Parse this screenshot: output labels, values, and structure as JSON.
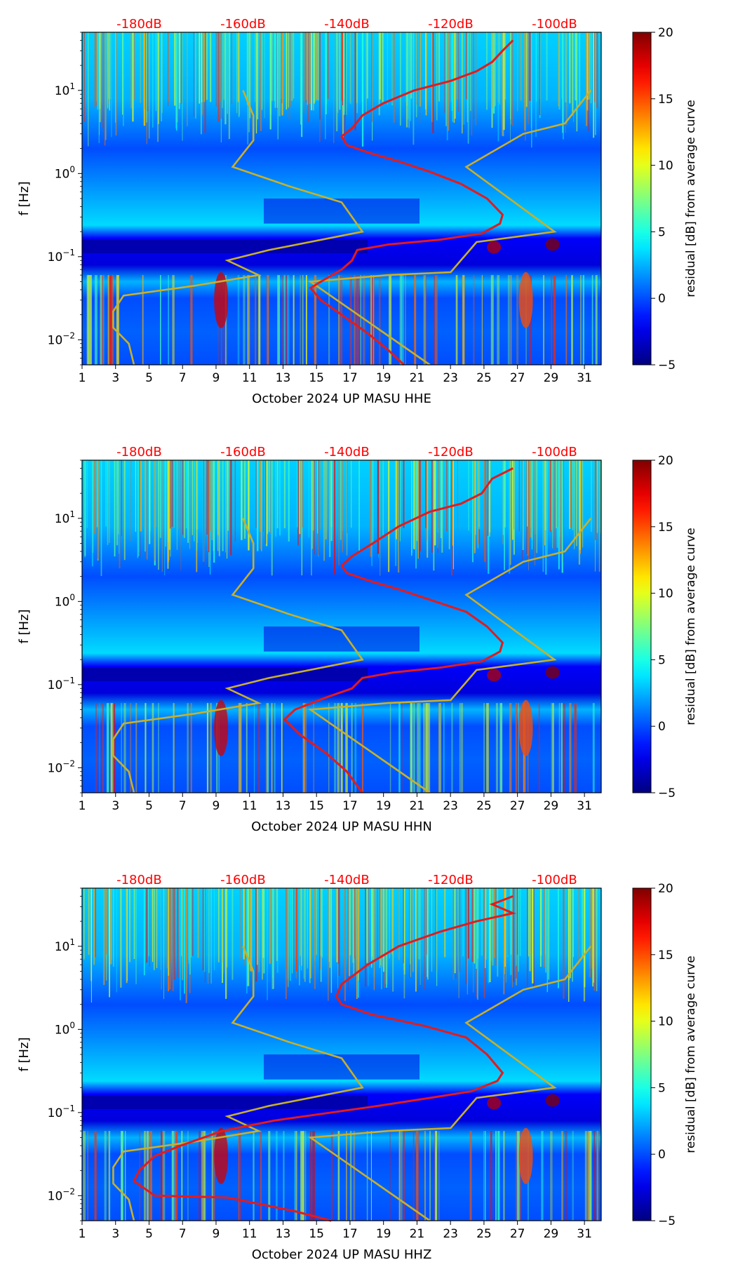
{
  "chart_data": [
    {
      "type": "heatmap",
      "channel": "HHE",
      "xlabel": "October 2024 UP MASU  HHE",
      "ylabel": "f [Hz]",
      "colorbar_label": "residual [dB] from average curve",
      "x_ticks": [
        "1",
        "3",
        "5",
        "7",
        "9",
        "11",
        "13",
        "15",
        "17",
        "19",
        "21",
        "23",
        "25",
        "27",
        "29",
        "31"
      ],
      "xlim": [
        1,
        32
      ],
      "ylim_hz": [
        0.005,
        50
      ],
      "y_ticks": [
        {
          "exp": "1",
          "value": 10
        },
        {
          "exp": "0",
          "value": 1
        },
        {
          "exp": "−1",
          "value": 0.1
        },
        {
          "exp": "−2",
          "value": 0.01
        }
      ],
      "colorbar_ticks": [
        "20",
        "15",
        "10",
        "5",
        "0",
        "−5"
      ],
      "colorbar_range": [
        -5,
        20
      ],
      "db_axis": {
        "labels": [
          "-180dB",
          "-160dB",
          "-140dB",
          "-120dB",
          "-100dB"
        ],
        "values": [
          -180,
          -160,
          -140,
          -120,
          -100
        ],
        "range": [
          -191,
          -91
        ]
      },
      "red_curve": {
        "name": "mean PSD",
        "points_db_hz": [
          [
            -108,
            40
          ],
          [
            -110,
            30
          ],
          [
            -112,
            22
          ],
          [
            -115,
            17
          ],
          [
            -120,
            13
          ],
          [
            -127,
            10
          ],
          [
            -133,
            7
          ],
          [
            -137,
            5
          ],
          [
            -139,
            3.5
          ],
          [
            -141,
            2.8
          ],
          [
            -140,
            2.2
          ],
          [
            -136,
            1.8
          ],
          [
            -130,
            1.4
          ],
          [
            -124,
            1.05
          ],
          [
            -118,
            0.75
          ],
          [
            -113,
            0.5
          ],
          [
            -110,
            0.32
          ],
          [
            -110.5,
            0.25
          ],
          [
            -114,
            0.19
          ],
          [
            -122,
            0.16
          ],
          [
            -132,
            0.14
          ],
          [
            -138,
            0.12
          ],
          [
            -139,
            0.09
          ],
          [
            -141,
            0.07
          ],
          [
            -145,
            0.05
          ],
          [
            -147,
            0.042
          ],
          [
            -145,
            0.03
          ],
          [
            -141,
            0.02
          ],
          [
            -136,
            0.012
          ],
          [
            -132,
            0.0075
          ],
          [
            -129,
            0.005
          ]
        ]
      },
      "yellow_curves": [
        {
          "name": "NLNM",
          "points_db_hz": [
            [
              -160,
              10
            ],
            [
              -158,
              5
            ],
            [
              -158,
              2.5
            ],
            [
              -162,
              1.2
            ],
            [
              -151,
              0.7
            ],
            [
              -141,
              0.45
            ],
            [
              -137,
              0.2
            ],
            [
              -155,
              0.12
            ],
            [
              -163,
              0.09
            ],
            [
              -157,
              0.06
            ],
            [
              -169,
              0.045
            ],
            [
              -183,
              0.034
            ],
            [
              -185,
              0.022
            ],
            [
              -185,
              0.014
            ],
            [
              -182,
              0.009
            ],
            [
              -181,
              0.005
            ]
          ]
        },
        {
          "name": "NHNM",
          "points_db_hz": [
            [
              -93,
              10
            ],
            [
              -98,
              4
            ],
            [
              -106,
              3
            ],
            [
              -117,
              1.2
            ],
            [
              -100,
              0.2
            ],
            [
              -115,
              0.15
            ],
            [
              -120,
              0.065
            ],
            [
              -132,
              0.06
            ],
            [
              -147,
              0.05
            ],
            [
              -124,
              0.005
            ]
          ]
        }
      ]
    },
    {
      "type": "heatmap",
      "channel": "HHN",
      "xlabel": "October 2024 UP MASU  HHN",
      "ylabel": "f [Hz]",
      "colorbar_label": "residual [dB] from average curve",
      "x_ticks": [
        "1",
        "3",
        "5",
        "7",
        "9",
        "11",
        "13",
        "15",
        "17",
        "19",
        "21",
        "23",
        "25",
        "27",
        "29",
        "31"
      ],
      "xlim": [
        1,
        32
      ],
      "ylim_hz": [
        0.005,
        50
      ],
      "y_ticks": [
        {
          "exp": "1",
          "value": 10
        },
        {
          "exp": "0",
          "value": 1
        },
        {
          "exp": "−1",
          "value": 0.1
        },
        {
          "exp": "−2",
          "value": 0.01
        }
      ],
      "colorbar_ticks": [
        "20",
        "15",
        "10",
        "5",
        "0",
        "−5"
      ],
      "colorbar_range": [
        -5,
        20
      ],
      "db_axis": {
        "labels": [
          "-180dB",
          "-160dB",
          "-140dB",
          "-120dB",
          "-100dB"
        ],
        "values": [
          -180,
          -160,
          -140,
          -120,
          -100
        ],
        "range": [
          -191,
          -91
        ]
      },
      "red_curve": {
        "name": "mean PSD",
        "points_db_hz": [
          [
            -108,
            40
          ],
          [
            -112,
            30
          ],
          [
            -114,
            20
          ],
          [
            -118,
            15
          ],
          [
            -124,
            12
          ],
          [
            -130,
            8
          ],
          [
            -135,
            5
          ],
          [
            -139,
            3.5
          ],
          [
            -141,
            2.7
          ],
          [
            -140,
            2.2
          ],
          [
            -136,
            1.8
          ],
          [
            -130,
            1.4
          ],
          [
            -124,
            1.05
          ],
          [
            -117,
            0.75
          ],
          [
            -113,
            0.5
          ],
          [
            -110,
            0.32
          ],
          [
            -110.5,
            0.25
          ],
          [
            -114,
            0.19
          ],
          [
            -122,
            0.16
          ],
          [
            -131,
            0.14
          ],
          [
            -137,
            0.12
          ],
          [
            -139,
            0.09
          ],
          [
            -144,
            0.07
          ],
          [
            -150,
            0.05
          ],
          [
            -152,
            0.038
          ],
          [
            -149,
            0.025
          ],
          [
            -144,
            0.015
          ],
          [
            -140,
            0.009
          ],
          [
            -137,
            0.005
          ]
        ]
      },
      "yellow_curves": [
        {
          "name": "NLNM",
          "points_db_hz": [
            [
              -160,
              10
            ],
            [
              -158,
              5
            ],
            [
              -158,
              2.5
            ],
            [
              -162,
              1.2
            ],
            [
              -151,
              0.7
            ],
            [
              -141,
              0.45
            ],
            [
              -137,
              0.2
            ],
            [
              -155,
              0.12
            ],
            [
              -163,
              0.09
            ],
            [
              -157,
              0.06
            ],
            [
              -169,
              0.045
            ],
            [
              -183,
              0.034
            ],
            [
              -185,
              0.022
            ],
            [
              -185,
              0.014
            ],
            [
              -182,
              0.009
            ],
            [
              -181,
              0.005
            ]
          ]
        },
        {
          "name": "NHNM",
          "points_db_hz": [
            [
              -93,
              10
            ],
            [
              -98,
              4
            ],
            [
              -106,
              3
            ],
            [
              -117,
              1.2
            ],
            [
              -100,
              0.2
            ],
            [
              -115,
              0.15
            ],
            [
              -120,
              0.065
            ],
            [
              -132,
              0.06
            ],
            [
              -147,
              0.05
            ],
            [
              -124,
              0.005
            ]
          ]
        }
      ]
    },
    {
      "type": "heatmap",
      "channel": "HHZ",
      "xlabel": "October 2024 UP MASU  HHZ",
      "ylabel": "f [Hz]",
      "colorbar_label": "residual [dB] from average curve",
      "x_ticks": [
        "1",
        "3",
        "5",
        "7",
        "9",
        "11",
        "13",
        "15",
        "17",
        "19",
        "21",
        "23",
        "25",
        "27",
        "29",
        "31"
      ],
      "xlim": [
        1,
        32
      ],
      "ylim_hz": [
        0.005,
        50
      ],
      "y_ticks": [
        {
          "exp": "1",
          "value": 10
        },
        {
          "exp": "0",
          "value": 1
        },
        {
          "exp": "−1",
          "value": 0.1
        },
        {
          "exp": "−2",
          "value": 0.01
        }
      ],
      "colorbar_ticks": [
        "20",
        "15",
        "10",
        "5",
        "0",
        "−5"
      ],
      "colorbar_range": [
        -5,
        20
      ],
      "db_axis": {
        "labels": [
          "-180dB",
          "-160dB",
          "-140dB",
          "-120dB",
          "-100dB"
        ],
        "values": [
          -180,
          -160,
          -140,
          -120,
          -100
        ],
        "range": [
          -191,
          -91
        ]
      },
      "red_curve": {
        "name": "mean PSD",
        "points_db_hz": [
          [
            -108,
            40
          ],
          [
            -112,
            32
          ],
          [
            -108,
            25
          ],
          [
            -115,
            20
          ],
          [
            -122,
            15
          ],
          [
            -130,
            10
          ],
          [
            -136,
            6
          ],
          [
            -141,
            3.5
          ],
          [
            -142,
            2.5
          ],
          [
            -141,
            2
          ],
          [
            -135,
            1.5
          ],
          [
            -125,
            1.1
          ],
          [
            -117,
            0.8
          ],
          [
            -113,
            0.5
          ],
          [
            -110,
            0.3
          ],
          [
            -111,
            0.24
          ],
          [
            -116,
            0.18
          ],
          [
            -124,
            0.15
          ],
          [
            -134,
            0.12
          ],
          [
            -143,
            0.1
          ],
          [
            -154,
            0.08
          ],
          [
            -164,
            0.06
          ],
          [
            -172,
            0.04
          ],
          [
            -177,
            0.03
          ],
          [
            -180,
            0.02
          ],
          [
            -181,
            0.015
          ],
          [
            -177,
            0.01
          ],
          [
            -163,
            0.0095
          ],
          [
            -150,
            0.0065
          ],
          [
            -143,
            0.005
          ]
        ]
      },
      "yellow_curves": [
        {
          "name": "NLNM",
          "points_db_hz": [
            [
              -160,
              10
            ],
            [
              -158,
              5
            ],
            [
              -158,
              2.5
            ],
            [
              -162,
              1.2
            ],
            [
              -151,
              0.7
            ],
            [
              -141,
              0.45
            ],
            [
              -137,
              0.2
            ],
            [
              -155,
              0.12
            ],
            [
              -163,
              0.09
            ],
            [
              -157,
              0.06
            ],
            [
              -169,
              0.045
            ],
            [
              -183,
              0.034
            ],
            [
              -185,
              0.022
            ],
            [
              -185,
              0.014
            ],
            [
              -182,
              0.009
            ],
            [
              -181,
              0.005
            ]
          ]
        },
        {
          "name": "NHNM",
          "points_db_hz": [
            [
              -93,
              10
            ],
            [
              -98,
              4
            ],
            [
              -106,
              3
            ],
            [
              -117,
              1.2
            ],
            [
              -100,
              0.2
            ],
            [
              -115,
              0.15
            ],
            [
              -120,
              0.065
            ],
            [
              -132,
              0.06
            ],
            [
              -147,
              0.05
            ],
            [
              -124,
              0.005
            ]
          ]
        }
      ]
    }
  ],
  "colors": {
    "db_labels": "#ff0000",
    "mean_curve": "#e41a1c",
    "noise_model_curves": "#c8b02a",
    "colormap": "jet"
  }
}
